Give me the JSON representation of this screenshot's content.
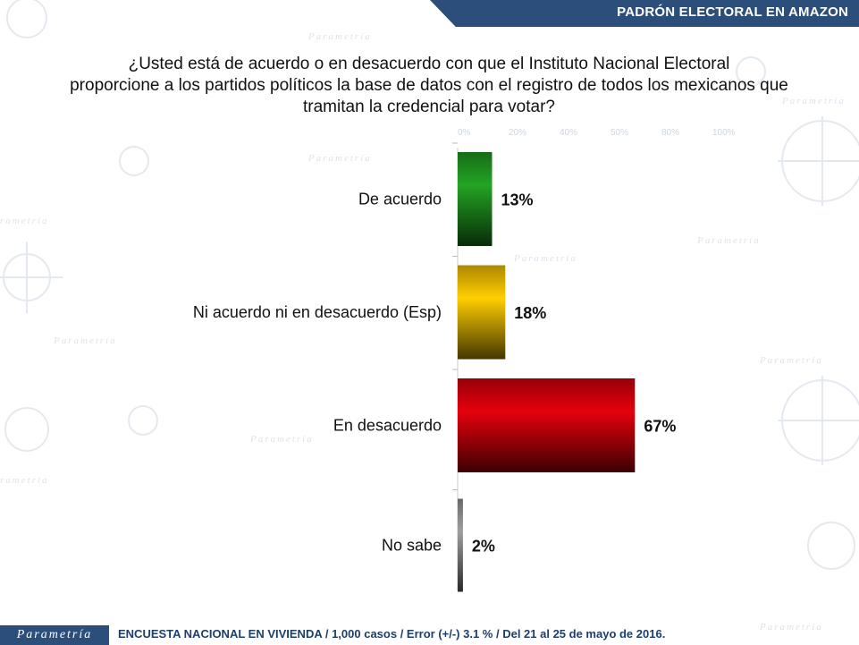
{
  "header": {
    "title": "PADRÓN ELECTORAL EN AMAZON"
  },
  "question": {
    "line1": "¿Usted está de acuerdo o en desacuerdo con que el Instituto Nacional Electoral",
    "line2": "proporcione a los partidos políticos la base de datos con el registro de todos los mexicanos que",
    "line3": "tramitan la credencial para votar?"
  },
  "chart_data": {
    "type": "bar",
    "orientation": "horizontal",
    "categories": [
      "De acuerdo",
      "Ni acuerdo ni en desacuerdo (Esp)",
      "En desacuerdo",
      "No sabe"
    ],
    "values": [
      13,
      18,
      67,
      2
    ],
    "value_labels": [
      "13%",
      "18%",
      "67%",
      "2%"
    ],
    "xlim": [
      0,
      100
    ],
    "x_ticks": [
      "0%",
      "20%",
      "40%",
      "50%",
      "80%",
      "100%"
    ],
    "bar_colors": [
      "#1e8f1e",
      "#e6b400",
      "#c8000a",
      "#8a8a8a"
    ],
    "grid": false,
    "legend": "none"
  },
  "footer": {
    "logo": "Parametría",
    "note": "ENCUESTA NACIONAL EN VIVIENDA / 1,000 casos / Error (+/-) 3.1 % / Del 21 al 25 de mayo de 2016."
  }
}
